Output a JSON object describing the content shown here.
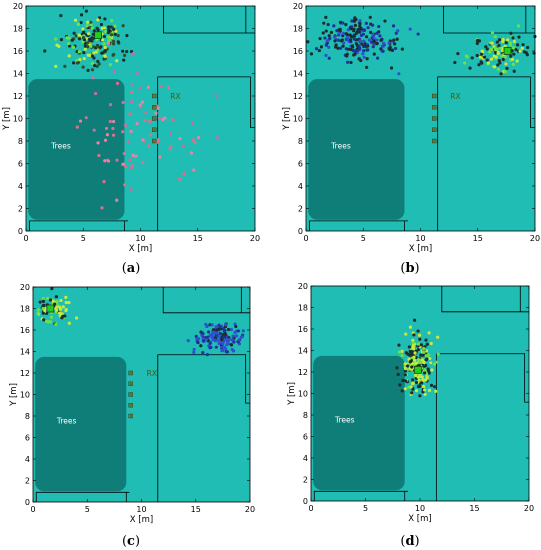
{
  "theme": {
    "ground": "#1fbdb4",
    "trees_fill": "#0f7d78",
    "wall": "#000000",
    "rx_marker": "#5a7a2a",
    "tx_marker": "#22cc22"
  },
  "chart_data": [
    {
      "type": "scatter",
      "panel_label": "a",
      "xlabel": "X [m]",
      "ylabel": "Y [m]",
      "xlim": [
        0,
        20
      ],
      "ylim": [
        0,
        20
      ],
      "xticks": [
        0,
        5,
        10,
        15,
        20
      ],
      "yticks": [
        0,
        2,
        4,
        6,
        8,
        10,
        12,
        14,
        16,
        18,
        20
      ],
      "trees_label": "Trees",
      "rx_label": "RX",
      "tx": [
        6.3,
        17.4
      ],
      "rx_points": [
        [
          11.2,
          12.0
        ],
        [
          11.2,
          11.0
        ],
        [
          11.2,
          10.0
        ],
        [
          11.2,
          9.0
        ],
        [
          11.2,
          8.0
        ]
      ],
      "clusters": [
        {
          "cx": 6.0,
          "cy": 16.8,
          "sx": 2.4,
          "sy": 2.2,
          "n": 170,
          "colors": [
            "#1a2e2e",
            "#1a2e2e",
            "#2d4f2a",
            "#6ee045",
            "#c8ea3c"
          ]
        },
        {
          "cx": 9.5,
          "cy": 8.5,
          "sx": 5.0,
          "sy": 5.0,
          "n": 90,
          "colors": [
            "#e0708a",
            "#c870a0",
            "#f080a0"
          ]
        }
      ]
    },
    {
      "type": "scatter",
      "panel_label": "b",
      "xlabel": "X [m]",
      "ylabel": "Y [m]",
      "xlim": [
        0,
        20
      ],
      "ylim": [
        0,
        20
      ],
      "xticks": [
        0,
        5,
        10,
        15,
        20
      ],
      "yticks": [
        0,
        2,
        4,
        6,
        8,
        10,
        12,
        14,
        16,
        18,
        20
      ],
      "trees_label": "Trees",
      "rx_label": "RX",
      "tx": [
        17.6,
        16.0
      ],
      "rx_points": [
        [
          11.2,
          12.0
        ],
        [
          11.2,
          11.0
        ],
        [
          11.2,
          10.0
        ],
        [
          11.2,
          9.0
        ],
        [
          11.2,
          8.0
        ]
      ],
      "clusters": [
        {
          "cx": 4.5,
          "cy": 17.0,
          "sx": 3.2,
          "sy": 1.8,
          "n": 210,
          "colors": [
            "#1a2e2e",
            "#1a2e2e",
            "#1a2e2e",
            "#2030a0",
            "#3050d0"
          ]
        },
        {
          "cx": 17.0,
          "cy": 15.8,
          "sx": 2.6,
          "sy": 1.4,
          "n": 120,
          "colors": [
            "#1a2e2e",
            "#1a2e2e",
            "#6ee045",
            "#c8ea3c"
          ]
        }
      ]
    },
    {
      "type": "scatter",
      "panel_label": "c",
      "xlabel": "X [m]",
      "ylabel": "Y [m]",
      "xlim": [
        0,
        20
      ],
      "ylim": [
        0,
        20
      ],
      "xticks": [
        0,
        5,
        10,
        15,
        20
      ],
      "yticks": [
        0,
        2,
        4,
        6,
        8,
        10,
        12,
        14,
        16,
        18,
        20
      ],
      "trees_label": "Trees",
      "rx_label": "RX",
      "tx": [
        1.6,
        18.0
      ],
      "rx_points": [
        [
          9.0,
          12.0
        ],
        [
          9.0,
          11.0
        ],
        [
          9.0,
          10.0
        ],
        [
          9.0,
          9.0
        ],
        [
          9.0,
          8.0
        ]
      ],
      "clusters": [
        {
          "cx": 1.8,
          "cy": 17.8,
          "sx": 1.4,
          "sy": 1.3,
          "n": 70,
          "colors": [
            "#1a2e2e",
            "#6ee045",
            "#c8ea3c",
            "#c8ea3c"
          ]
        },
        {
          "cx": 17.2,
          "cy": 15.3,
          "sx": 1.9,
          "sy": 1.3,
          "n": 150,
          "colors": [
            "#1a2e2e",
            "#2030a0",
            "#3050d0",
            "#3050d0"
          ]
        }
      ]
    },
    {
      "type": "scatter",
      "panel_label": "d",
      "xlabel": "X [m]",
      "ylabel": "Y [m]",
      "xlim": [
        0,
        20
      ],
      "ylim": [
        0,
        20
      ],
      "xticks": [
        0,
        5,
        10,
        15,
        20
      ],
      "yticks": [
        0,
        2,
        4,
        6,
        8,
        10,
        12,
        14,
        16,
        18,
        20
      ],
      "trees_label": "Trees",
      "rx_label": "",
      "tx": [
        9.8,
        12.2
      ],
      "rx_points": [],
      "clusters": [
        {
          "cx": 9.8,
          "cy": 12.6,
          "sx": 1.4,
          "sy": 2.4,
          "n": 200,
          "colors": [
            "#1a2e2e",
            "#1a2e2e",
            "#6ee045",
            "#c8ea3c",
            "#c8ea3c"
          ]
        }
      ]
    }
  ]
}
